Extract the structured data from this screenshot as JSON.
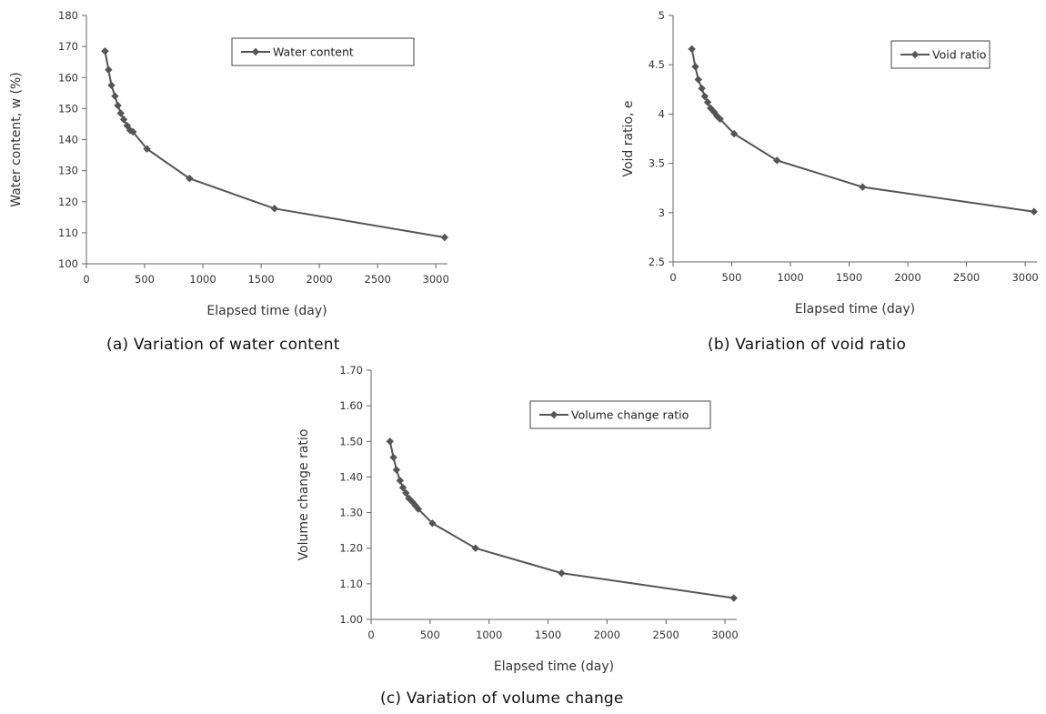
{
  "chart_data": [
    {
      "type": "line",
      "caption": "(a) Variation of water content",
      "xlabel": "Elapsed time (day)",
      "ylabel": "Water content, w (%)",
      "xlim": [
        0,
        3100
      ],
      "ylim": [
        100,
        180
      ],
      "xticks": [
        0,
        500,
        1000,
        1500,
        2000,
        2500,
        3000
      ],
      "yticks": [
        100,
        110,
        120,
        130,
        140,
        150,
        160,
        170,
        180
      ],
      "ytick_labels": [
        "100",
        "110",
        "120",
        "130",
        "140",
        "150",
        "160",
        "170",
        "180"
      ],
      "legend_position": "top-right",
      "marker": "diamond",
      "series": [
        {
          "name": "Water content",
          "color": "#555555",
          "x": [
            160,
            190,
            215,
            245,
            270,
            295,
            320,
            350,
            375,
            400,
            520,
            885,
            1615,
            3075
          ],
          "y": [
            168.5,
            162.5,
            157.5,
            154.0,
            151.0,
            148.5,
            146.5,
            144.5,
            143.0,
            142.5,
            137.0,
            127.5,
            117.8,
            108.5
          ]
        }
      ]
    },
    {
      "type": "line",
      "caption": "(b) Variation of void ratio",
      "xlabel": "Elapsed time (day)",
      "ylabel": "Void ratio, e",
      "xlim": [
        0,
        3100
      ],
      "ylim": [
        2.5,
        5
      ],
      "xticks": [
        0,
        500,
        1000,
        1500,
        2000,
        2500,
        3000
      ],
      "yticks": [
        2.5,
        3,
        3.5,
        4,
        4.5,
        5
      ],
      "ytick_labels": [
        "2.5",
        "3",
        "3.5",
        "4",
        "4.5",
        "5"
      ],
      "legend_position": "top-right",
      "marker": "diamond",
      "series": [
        {
          "name": "Void ratio",
          "color": "#555555",
          "x": [
            160,
            190,
            215,
            245,
            270,
            295,
            320,
            350,
            375,
            400,
            520,
            885,
            1615,
            3075
          ],
          "y": [
            4.66,
            4.48,
            4.35,
            4.26,
            4.18,
            4.12,
            4.06,
            4.02,
            3.98,
            3.95,
            3.8,
            3.53,
            3.26,
            3.01
          ]
        }
      ]
    },
    {
      "type": "line",
      "caption": "(c) Variation of volume change",
      "xlabel": "Elapsed time (day)",
      "ylabel": "Volume change ratio",
      "xlim": [
        0,
        3100
      ],
      "ylim": [
        1.0,
        1.7
      ],
      "xticks": [
        0,
        500,
        1000,
        1500,
        2000,
        2500,
        3000
      ],
      "yticks": [
        1.0,
        1.1,
        1.2,
        1.3,
        1.4,
        1.5,
        1.6,
        1.7
      ],
      "ytick_labels": [
        "1.00",
        "1.10",
        "1.20",
        "1.30",
        "1.40",
        "1.50",
        "1.60",
        "1.70"
      ],
      "legend_position": "top-right",
      "marker": "diamond",
      "series": [
        {
          "name": "Volume change ratio",
          "color": "#555555",
          "x": [
            160,
            190,
            215,
            245,
            270,
            295,
            320,
            350,
            375,
            400,
            520,
            885,
            1615,
            3075
          ],
          "y": [
            1.5,
            1.455,
            1.42,
            1.39,
            1.37,
            1.355,
            1.34,
            1.33,
            1.32,
            1.31,
            1.27,
            1.2,
            1.13,
            1.06
          ]
        }
      ]
    }
  ]
}
